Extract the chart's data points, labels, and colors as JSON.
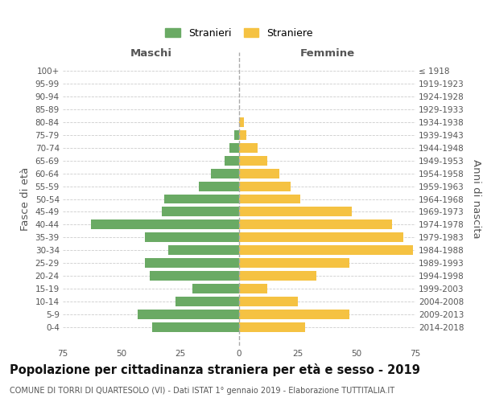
{
  "age_groups": [
    "100+",
    "95-99",
    "90-94",
    "85-89",
    "80-84",
    "75-79",
    "70-74",
    "65-69",
    "60-64",
    "55-59",
    "50-54",
    "45-49",
    "40-44",
    "35-39",
    "30-34",
    "25-29",
    "20-24",
    "15-19",
    "10-14",
    "5-9",
    "0-4"
  ],
  "birth_years": [
    "≤ 1918",
    "1919-1923",
    "1924-1928",
    "1929-1933",
    "1934-1938",
    "1939-1943",
    "1944-1948",
    "1949-1953",
    "1954-1958",
    "1959-1963",
    "1964-1968",
    "1969-1973",
    "1974-1978",
    "1979-1983",
    "1984-1988",
    "1989-1993",
    "1994-1998",
    "1999-2003",
    "2004-2008",
    "2009-2013",
    "2014-2018"
  ],
  "maschi": [
    0,
    0,
    0,
    0,
    0,
    2,
    4,
    6,
    12,
    17,
    32,
    33,
    63,
    40,
    30,
    40,
    38,
    20,
    27,
    43,
    37
  ],
  "femmine": [
    0,
    0,
    0,
    0,
    2,
    3,
    8,
    12,
    17,
    22,
    26,
    48,
    65,
    70,
    74,
    47,
    33,
    12,
    25,
    47,
    28
  ],
  "color_maschi": "#6aaa64",
  "color_femmine": "#f5c242",
  "title": "Popolazione per cittadinanza straniera per età e sesso - 2019",
  "subtitle": "COMUNE DI TORRI DI QUARTESOLO (VI) - Dati ISTAT 1° gennaio 2019 - Elaborazione TUTTITALIA.IT",
  "xlabel_left": "Maschi",
  "xlabel_right": "Femmine",
  "ylabel_left": "Fasce di età",
  "ylabel_right": "Anni di nascita",
  "xlim": 75,
  "legend_stranieri": "Stranieri",
  "legend_straniere": "Straniere",
  "background_color": "#ffffff",
  "grid_color": "#cccccc",
  "bar_height": 0.75,
  "tick_fontsize": 7.5,
  "label_fontsize": 9.5,
  "title_fontsize": 10.5,
  "subtitle_fontsize": 7.0
}
